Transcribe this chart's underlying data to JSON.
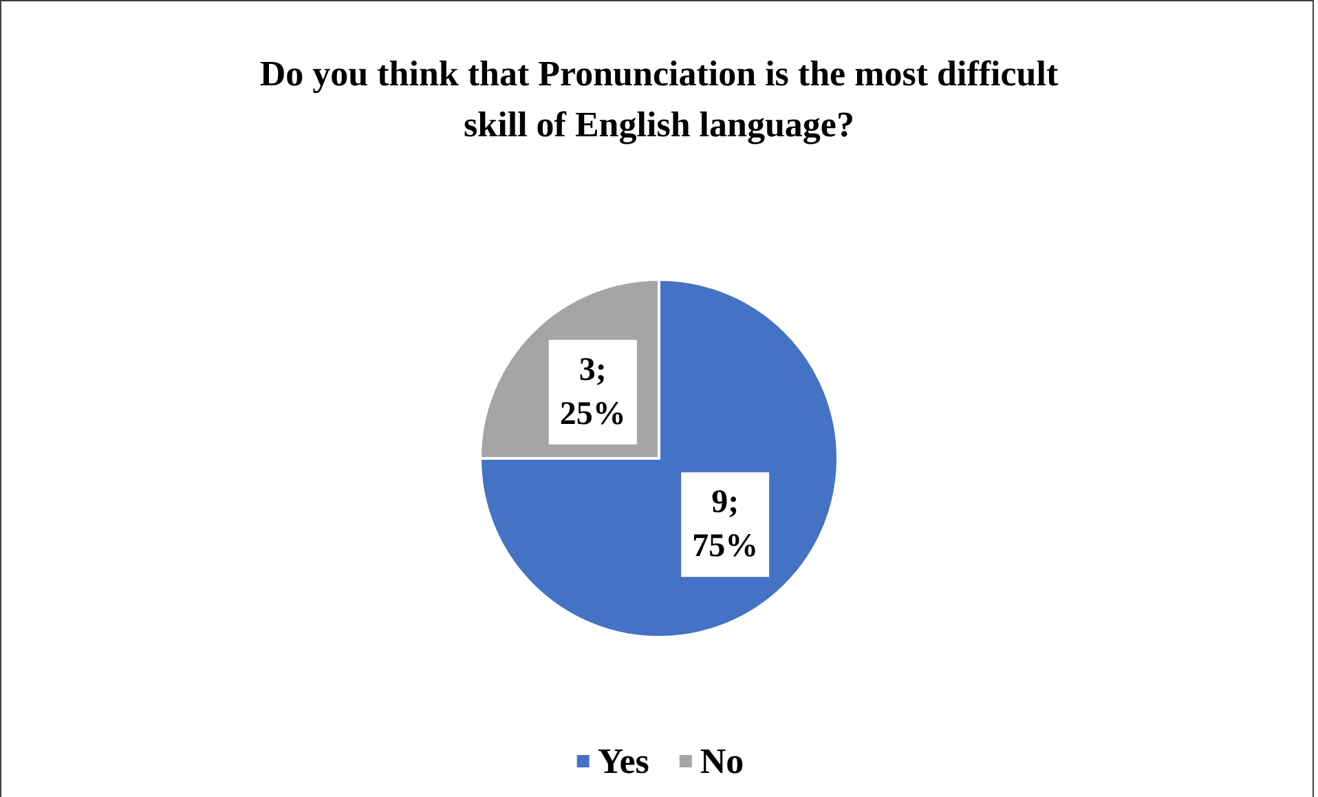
{
  "chart_data": {
    "type": "pie",
    "title": "Do you think that Pronunciation is the most difficult\nskill of English language?",
    "categories": [
      "Yes",
      "No"
    ],
    "values": [
      9,
      3
    ],
    "colors": [
      "#4472c4",
      "#a5a5a5"
    ],
    "value_labels": [
      "9;\n75%",
      "3;\n25%"
    ],
    "legend": "bottom"
  }
}
